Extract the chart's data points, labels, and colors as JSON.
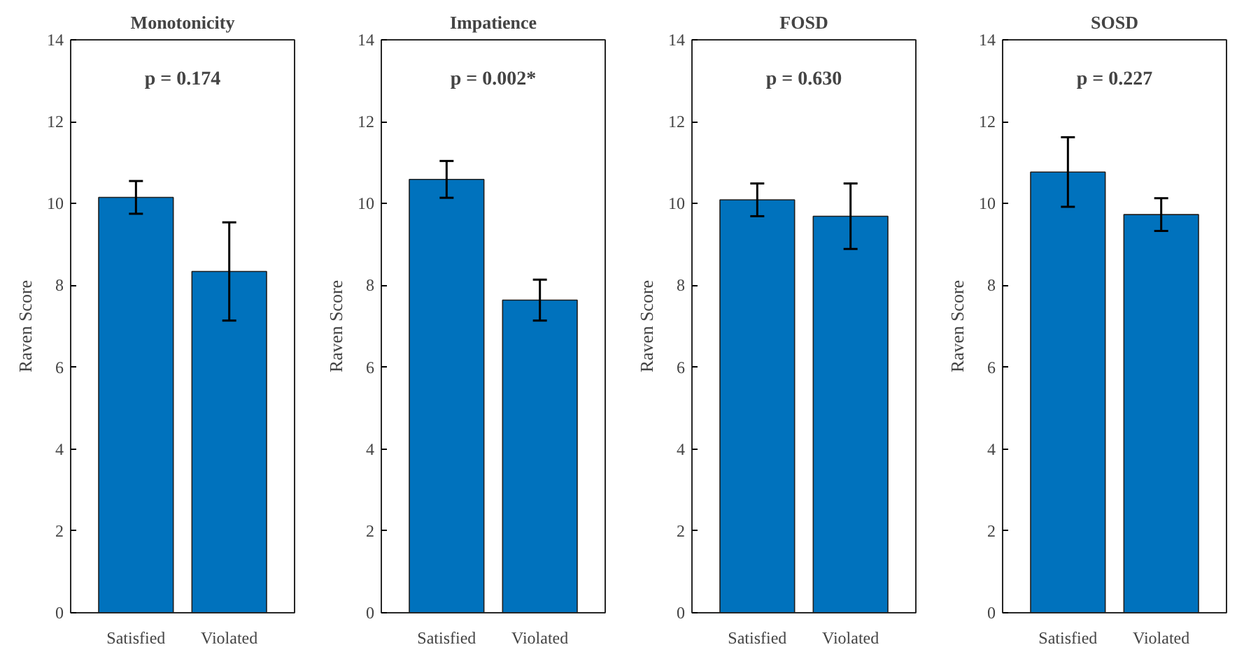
{
  "chart_data": [
    {
      "type": "bar",
      "title": "Monotonicity",
      "ylabel": "Raven Score",
      "categories": [
        "Satisfied",
        "Violated"
      ],
      "values": [
        10.15,
        8.34
      ],
      "errors": [
        0.4,
        1.2
      ],
      "color": "#0072bd",
      "ylim": [
        0,
        14
      ],
      "yticks": [
        0,
        2,
        4,
        6,
        8,
        10,
        12,
        14
      ],
      "grid": false,
      "annotations": [
        "p = 0.174"
      ]
    },
    {
      "type": "bar",
      "title": "Impatience",
      "ylabel": "Raven Score",
      "categories": [
        "Satisfied",
        "Violated"
      ],
      "values": [
        10.59,
        7.64
      ],
      "errors": [
        0.45,
        0.5
      ],
      "color": "#0072bd",
      "ylim": [
        0,
        14
      ],
      "yticks": [
        0,
        2,
        4,
        6,
        8,
        10,
        12,
        14
      ],
      "grid": false,
      "annotations": [
        "p = 0.002*"
      ]
    },
    {
      "type": "bar",
      "title": "FOSD",
      "ylabel": "Raven Score",
      "categories": [
        "Satisfied",
        "Violated"
      ],
      "values": [
        10.09,
        9.69
      ],
      "errors": [
        0.4,
        0.8
      ],
      "color": "#0072bd",
      "ylim": [
        0,
        14
      ],
      "yticks": [
        0,
        2,
        4,
        6,
        8,
        10,
        12,
        14
      ],
      "grid": false,
      "annotations": [
        "p = 0.630"
      ]
    },
    {
      "type": "bar",
      "title": "SOSD",
      "ylabel": "Raven Score",
      "categories": [
        "Satisfied",
        "Violated"
      ],
      "values": [
        10.77,
        9.73
      ],
      "errors": [
        0.85,
        0.4
      ],
      "color": "#0072bd",
      "ylim": [
        0,
        14
      ],
      "yticks": [
        0,
        2,
        4,
        6,
        8,
        10,
        12,
        14
      ],
      "grid": false,
      "annotations": [
        "p = 0.227"
      ]
    }
  ]
}
